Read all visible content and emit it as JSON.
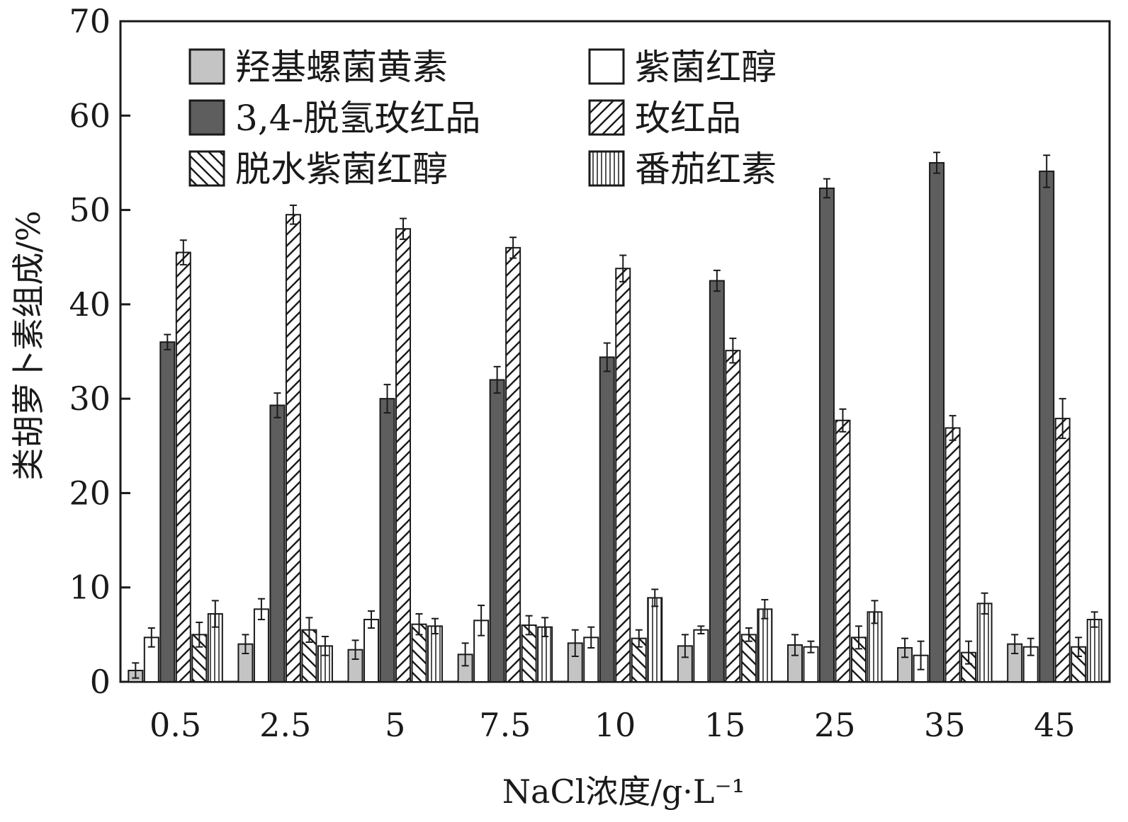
{
  "chart_data": {
    "type": "bar",
    "title": "",
    "xlabel": "NaCl浓度/g·L⁻¹",
    "ylabel": "类胡萝卜素组成/%",
    "ylim": [
      0,
      70
    ],
    "yticks": [
      "0",
      "10",
      "20",
      "30",
      "40",
      "50",
      "60",
      "70"
    ],
    "categories": [
      "0.5",
      "2.5",
      "5",
      "7.5",
      "10",
      "15",
      "25",
      "35",
      "45"
    ],
    "legend_position": "top-left",
    "series": [
      {
        "name": "羟基螺菌黄素",
        "pattern": "light-gray-fill",
        "color": "#c4c4c4",
        "values": [
          1.2,
          4.0,
          3.4,
          2.9,
          4.1,
          3.8,
          3.9,
          3.6,
          4.0
        ],
        "errors": [
          0.8,
          1.0,
          1.0,
          1.2,
          1.4,
          1.2,
          1.1,
          1.0,
          1.0
        ]
      },
      {
        "name": "紫菌红醇",
        "pattern": "white-fill",
        "color": "#ffffff",
        "values": [
          4.7,
          7.7,
          6.6,
          6.5,
          4.7,
          5.5,
          3.7,
          2.8,
          3.7
        ],
        "errors": [
          1.0,
          1.1,
          0.9,
          1.6,
          1.1,
          0.4,
          0.6,
          1.5,
          0.9
        ]
      },
      {
        "name": "3,4-脱氢玫红品",
        "pattern": "dark-gray-fill",
        "color": "#5e5e5e",
        "values": [
          36.0,
          29.3,
          30.0,
          32.0,
          34.4,
          42.5,
          52.3,
          55.0,
          54.1
        ],
        "errors": [
          0.8,
          1.3,
          1.5,
          1.4,
          1.5,
          1.1,
          1.0,
          1.1,
          1.7
        ]
      },
      {
        "name": "玫红品",
        "pattern": "forward-diagonal-hatch",
        "color": "#ffffff",
        "values": [
          45.5,
          49.5,
          48.0,
          46.0,
          43.8,
          35.1,
          27.7,
          26.9,
          27.9
        ],
        "errors": [
          1.3,
          1.0,
          1.1,
          1.1,
          1.4,
          1.3,
          1.2,
          1.3,
          2.1
        ]
      },
      {
        "name": "脱水紫菌红醇",
        "pattern": "backward-diagonal-hatch",
        "color": "#ffffff",
        "values": [
          5.0,
          5.5,
          6.1,
          6.0,
          4.6,
          5.0,
          4.7,
          3.1,
          3.7
        ],
        "errors": [
          1.3,
          1.3,
          1.1,
          1.0,
          0.9,
          0.7,
          1.2,
          1.2,
          1.0
        ]
      },
      {
        "name": "番茄红素",
        "pattern": "vertical-line-hatch",
        "color": "#ffffff",
        "values": [
          7.2,
          3.8,
          5.9,
          5.8,
          8.9,
          7.7,
          7.4,
          8.3,
          6.6
        ],
        "errors": [
          1.4,
          1.0,
          0.8,
          1.0,
          0.9,
          1.0,
          1.2,
          1.1,
          0.8
        ]
      }
    ]
  }
}
